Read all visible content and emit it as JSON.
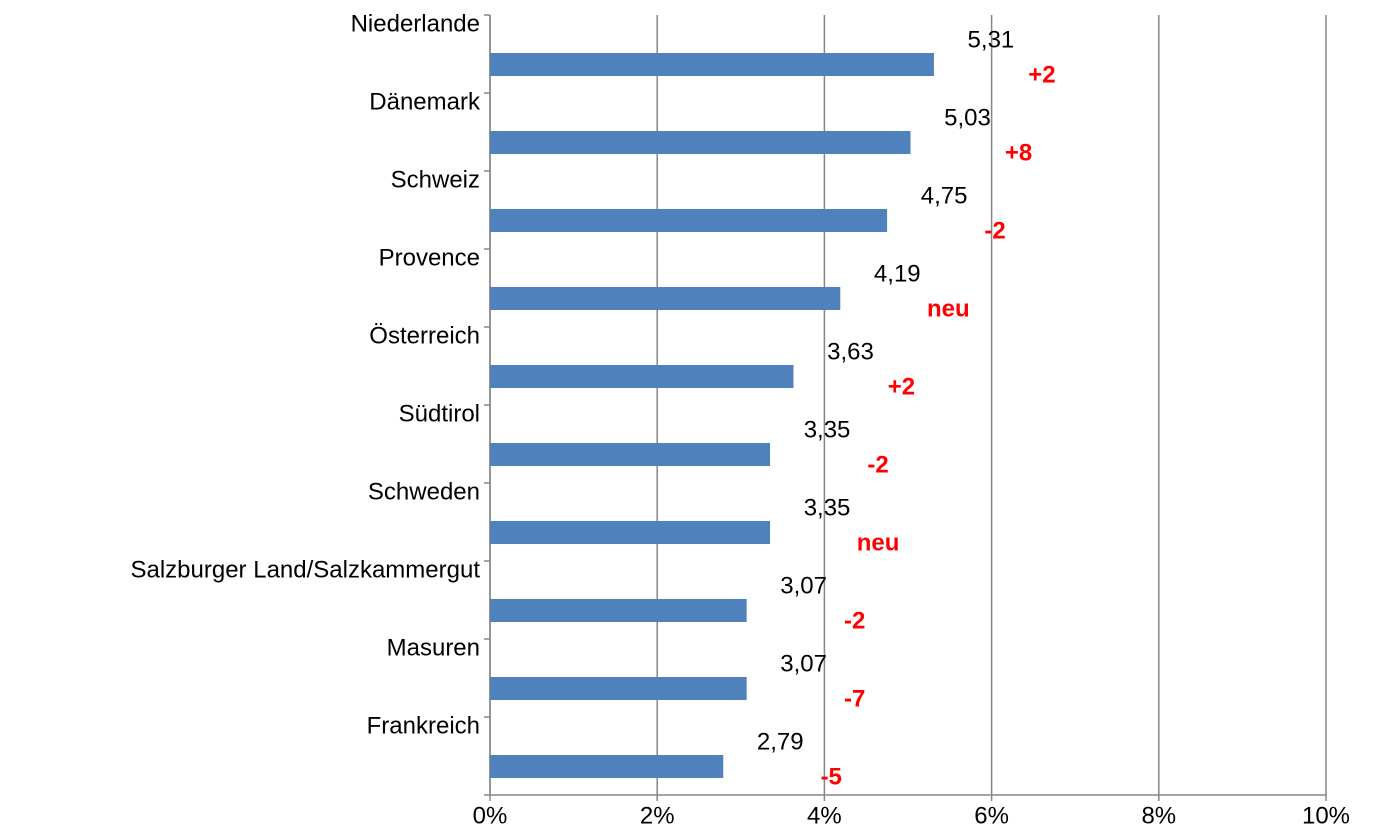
{
  "chart_data": {
    "type": "bar",
    "orientation": "horizontal",
    "categories": [
      "Niederlande",
      "Dänemark",
      "Schweiz",
      "Provence",
      "Österreich",
      "Südtirol",
      "Schweden",
      "Salzburger Land/Salzkammergut",
      "Masuren",
      "Frankreich"
    ],
    "values": [
      5.31,
      5.03,
      4.75,
      4.19,
      3.63,
      3.35,
      3.35,
      3.07,
      3.07,
      2.79
    ],
    "value_labels": [
      "5,31",
      "5,03",
      "4,75",
      "4,19",
      "3,63",
      "3,35",
      "3,35",
      "3,07",
      "3,07",
      "2,79"
    ],
    "changes": [
      "+2",
      "+8",
      "-2",
      "neu",
      "+2",
      "-2",
      "neu",
      "-2",
      "-7",
      "-5"
    ],
    "color": "#4f81bd",
    "change_color": "#ff0000",
    "xlim": [
      0,
      10
    ],
    "xticks": [
      {
        "value": 0,
        "label": "0%"
      },
      {
        "value": 2,
        "label": "2%"
      },
      {
        "value": 4,
        "label": "4%"
      },
      {
        "value": 6,
        "label": "6%"
      },
      {
        "value": 8,
        "label": "8%"
      },
      {
        "value": 10,
        "label": "10%"
      }
    ],
    "grid": true
  }
}
